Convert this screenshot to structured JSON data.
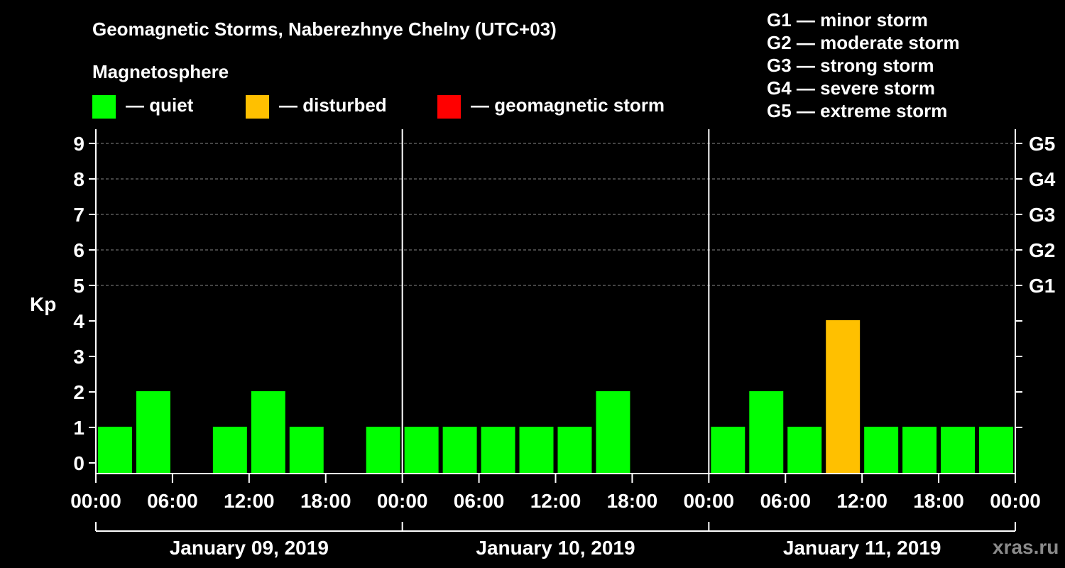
{
  "title": "Geomagnetic Storms, Naberezhnye Chelny (UTC+03)",
  "legend": {
    "heading": "Magnetosphere",
    "items": [
      {
        "label": "— quiet",
        "color": "#00ff00"
      },
      {
        "label": "— disturbed",
        "color": "#ffc000"
      },
      {
        "label": "— geomagnetic storm",
        "color": "#ff0000"
      }
    ],
    "storm_scale": [
      "G1 — minor storm",
      "G2 — moderate storm",
      "G3 — strong storm",
      "G4 — severe storm",
      "G5 — extreme storm"
    ]
  },
  "watermark": "xras.ru",
  "chart_data": {
    "type": "bar",
    "title": "Geomagnetic Storms, Naberezhnye Chelny (UTC+03)",
    "ylabel": "Kp",
    "ylim": [
      0,
      9
    ],
    "yticks": [
      "0",
      "1",
      "2",
      "3",
      "4",
      "5",
      "6",
      "7",
      "8",
      "9"
    ],
    "right_ticks": [
      {
        "kp": 5,
        "label": "G1"
      },
      {
        "kp": 6,
        "label": "G2"
      },
      {
        "kp": 7,
        "label": "G3"
      },
      {
        "kp": 8,
        "label": "G4"
      },
      {
        "kp": 9,
        "label": "G5"
      }
    ],
    "xlim_hours": [
      0,
      72
    ],
    "x_tick_labels": [
      "00:00",
      "06:00",
      "12:00",
      "18:00",
      "00:00",
      "06:00",
      "12:00",
      "18:00",
      "00:00",
      "06:00",
      "12:00",
      "18:00",
      "00:00"
    ],
    "days": [
      "January 09, 2019",
      "January 10, 2019",
      "January 11, 2019"
    ],
    "bar_interval_hours": 3,
    "values": [
      1,
      2,
      0,
      1,
      2,
      1,
      0,
      1,
      1,
      1,
      1,
      1,
      1,
      2,
      0,
      0,
      1,
      2,
      1,
      4,
      1,
      1,
      1,
      1
    ],
    "status": [
      "quiet",
      "quiet",
      "quiet",
      "quiet",
      "quiet",
      "quiet",
      "quiet",
      "quiet",
      "quiet",
      "quiet",
      "quiet",
      "quiet",
      "quiet",
      "quiet",
      "quiet",
      "quiet",
      "quiet",
      "quiet",
      "quiet",
      "disturbed",
      "quiet",
      "quiet",
      "quiet",
      "quiet"
    ],
    "status_colors": {
      "quiet": "#00ff00",
      "disturbed": "#ffc000",
      "storm": "#ff0000"
    }
  }
}
